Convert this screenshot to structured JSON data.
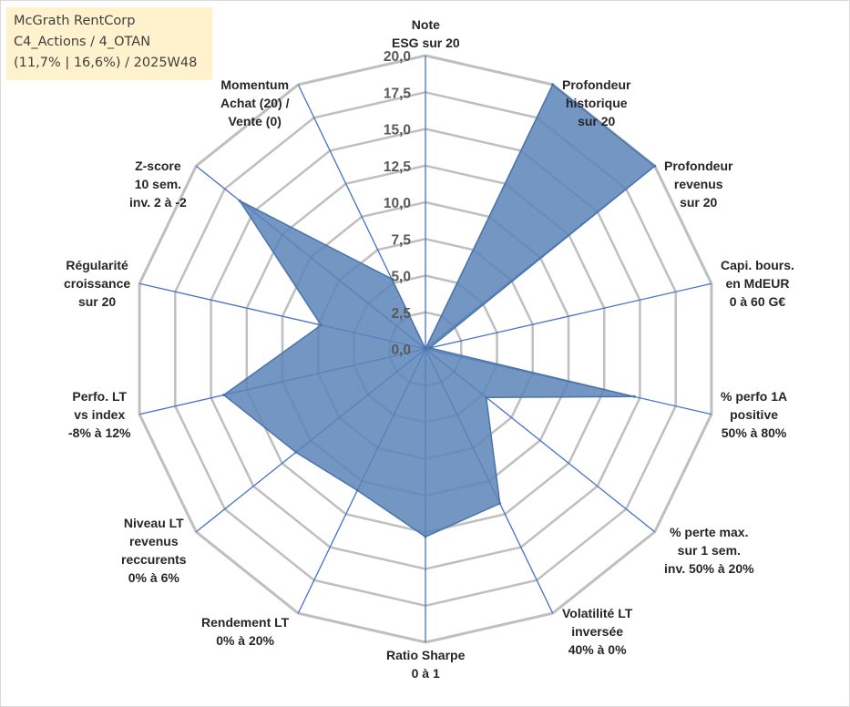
{
  "title_box": {
    "line1": "McGrath RentCorp",
    "line2": "C4_Actions / 4_OTAN",
    "line3": "(11,7% | 16,6%) / 2025W48"
  },
  "colors": {
    "fill": "#5b84b8",
    "stroke": "#4a73aa",
    "axis": "#4472c4",
    "grid": "#bfbfbf",
    "title_bg": "#fff2cc"
  },
  "chart_data": {
    "type": "radar",
    "ylim": [
      0,
      20
    ],
    "ticks": [
      "0,0",
      "2,5",
      "5,0",
      "7,5",
      "10,0",
      "12,5",
      "15,0",
      "17,5",
      "20,0"
    ],
    "tick_values": [
      0,
      2.5,
      5,
      7.5,
      10,
      12.5,
      15,
      17.5,
      20
    ],
    "categories": [
      [
        "Note",
        "ESG sur 20"
      ],
      [
        "Profondeur",
        "historique",
        "sur 20"
      ],
      [
        "Profondeur",
        "revenus",
        "sur 20"
      ],
      [
        "Capi. bours.",
        "en MdEUR",
        "0 à 60 G€"
      ],
      [
        "% perfo 1A",
        "positive",
        "50% à 80%"
      ],
      [
        "% perte max.",
        "sur 1 sem.",
        "inv. 50% à 20%"
      ],
      [
        "Volatilité LT",
        "inversée",
        "40% à 0%"
      ],
      [
        "Ratio Sharpe",
        "0 à 1"
      ],
      [
        "Rendement LT",
        "0% à 20%"
      ],
      [
        "Niveau LT",
        "revenus",
        "reccurents",
        "0% à 6%"
      ],
      [
        "Perfo. LT",
        "vs index",
        "-8% à 12%"
      ],
      [
        "Régularité",
        "croissance",
        "sur 20"
      ],
      [
        "Z-score",
        "10 sem.",
        "inv. 2 à -2"
      ],
      [
        "Momentum",
        "Achat (20) /",
        "Vente (0)"
      ]
    ],
    "series": [
      {
        "name": "McGrath RentCorp",
        "values": [
          0,
          20,
          20,
          0.3,
          14.6,
          5.3,
          11.7,
          12.8,
          10.7,
          11.3,
          14.1,
          7.3,
          16.2,
          5.3
        ]
      }
    ]
  }
}
